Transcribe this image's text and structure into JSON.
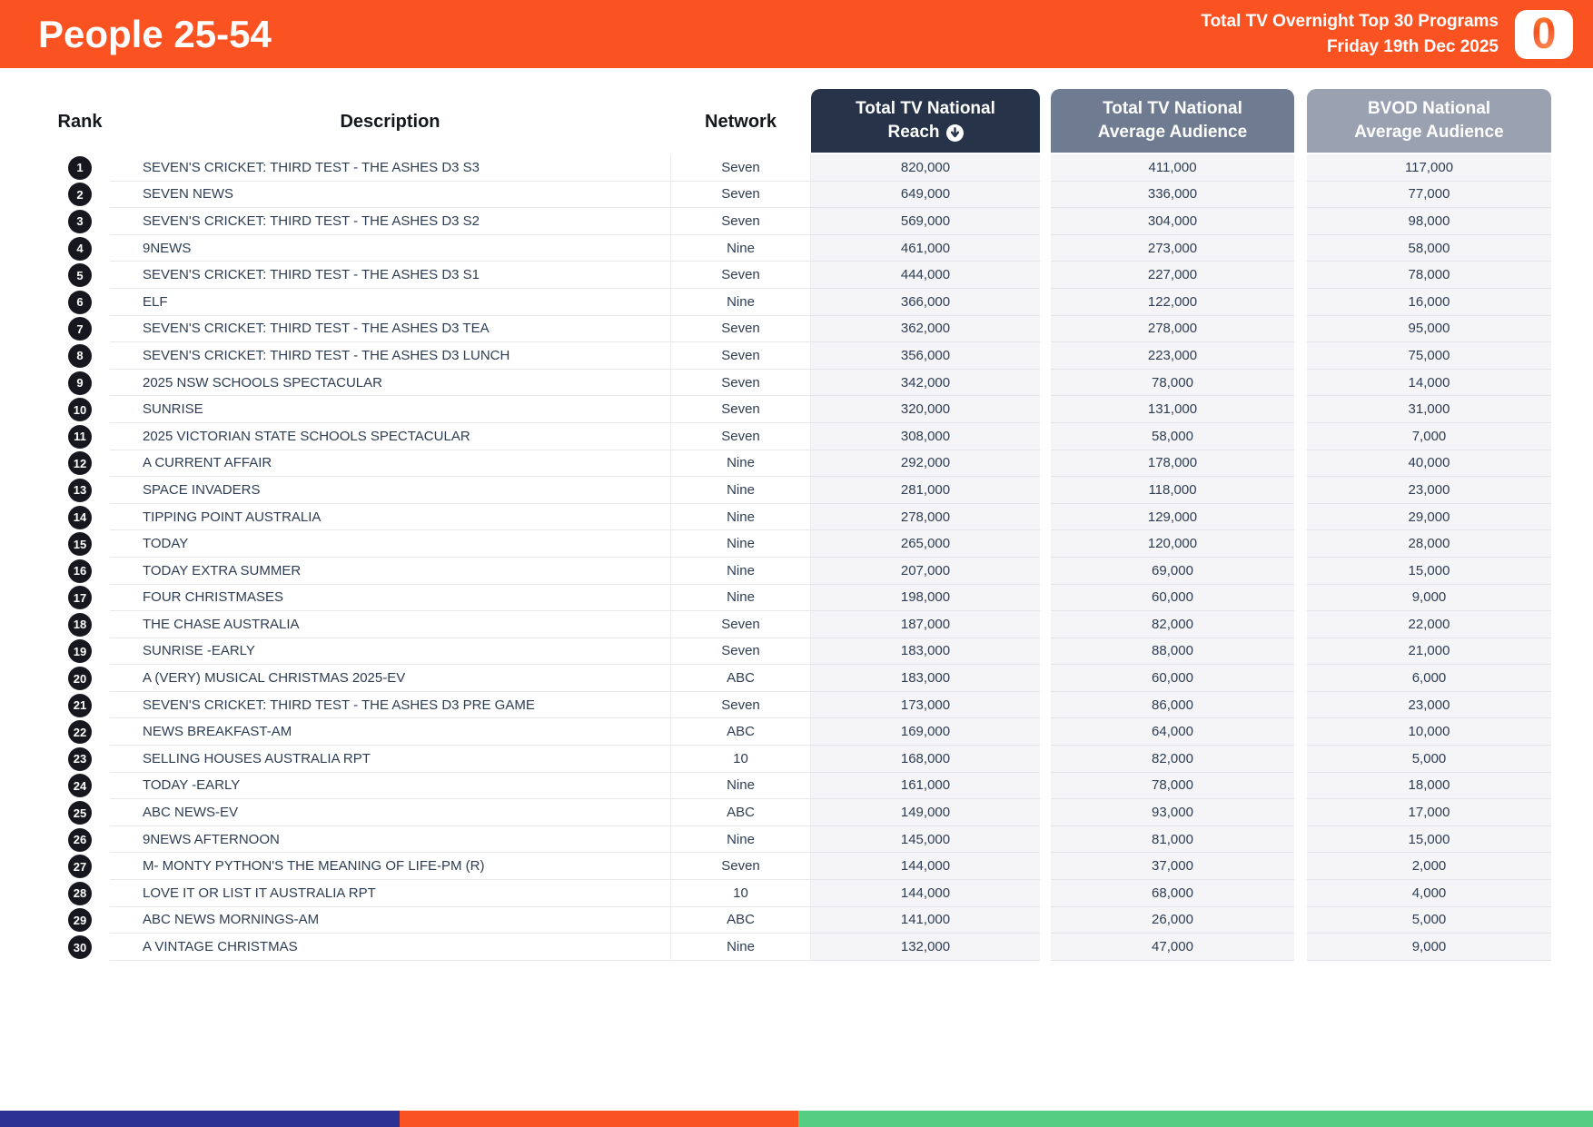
{
  "header": {
    "title": "People 25-54",
    "subtitle_line1": "Total TV Overnight Top 30 Programs",
    "subtitle_line2": "Friday 19th Dec 2025",
    "logo_char": "0"
  },
  "colors": {
    "brand_orange": "#FB5222",
    "reach_header": "#263349",
    "avg_header": "#6F7B90",
    "bvod_header": "#9AA2B1",
    "footer_blue": "#2D3193",
    "footer_green": "#55CE84",
    "table_text": "#2E3D52"
  },
  "table": {
    "columns": {
      "rank": "Rank",
      "description": "Description",
      "network": "Network",
      "reach_line1": "Total TV National",
      "reach_line2": "Reach",
      "reach_sort_icon": "circle-arrow-down",
      "avg_line1": "Total TV National",
      "avg_line2": "Average Audience",
      "bvod_line1": "BVOD National",
      "bvod_line2": "Average Audience"
    },
    "rows": [
      {
        "rank": "1",
        "description": "SEVEN'S CRICKET: THIRD TEST - THE ASHES D3 S3",
        "network": "Seven",
        "reach": "820,000",
        "avg_audience": "411,000",
        "bvod_audience": "117,000"
      },
      {
        "rank": "2",
        "description": "SEVEN NEWS",
        "network": "Seven",
        "reach": "649,000",
        "avg_audience": "336,000",
        "bvod_audience": "77,000"
      },
      {
        "rank": "3",
        "description": "SEVEN'S CRICKET: THIRD TEST - THE ASHES D3 S2",
        "network": "Seven",
        "reach": "569,000",
        "avg_audience": "304,000",
        "bvod_audience": "98,000"
      },
      {
        "rank": "4",
        "description": "9NEWS",
        "network": "Nine",
        "reach": "461,000",
        "avg_audience": "273,000",
        "bvod_audience": "58,000"
      },
      {
        "rank": "5",
        "description": "SEVEN'S CRICKET: THIRD TEST - THE ASHES D3 S1",
        "network": "Seven",
        "reach": "444,000",
        "avg_audience": "227,000",
        "bvod_audience": "78,000"
      },
      {
        "rank": "6",
        "description": "ELF",
        "network": "Nine",
        "reach": "366,000",
        "avg_audience": "122,000",
        "bvod_audience": "16,000"
      },
      {
        "rank": "7",
        "description": "SEVEN'S CRICKET: THIRD TEST - THE ASHES D3 TEA",
        "network": "Seven",
        "reach": "362,000",
        "avg_audience": "278,000",
        "bvod_audience": "95,000"
      },
      {
        "rank": "8",
        "description": "SEVEN'S CRICKET: THIRD TEST - THE ASHES D3 LUNCH",
        "network": "Seven",
        "reach": "356,000",
        "avg_audience": "223,000",
        "bvod_audience": "75,000"
      },
      {
        "rank": "9",
        "description": "2025 NSW SCHOOLS SPECTACULAR",
        "network": "Seven",
        "reach": "342,000",
        "avg_audience": "78,000",
        "bvod_audience": "14,000"
      },
      {
        "rank": "10",
        "description": "SUNRISE",
        "network": "Seven",
        "reach": "320,000",
        "avg_audience": "131,000",
        "bvod_audience": "31,000"
      },
      {
        "rank": "11",
        "description": "2025 VICTORIAN STATE SCHOOLS SPECTACULAR",
        "network": "Seven",
        "reach": "308,000",
        "avg_audience": "58,000",
        "bvod_audience": "7,000"
      },
      {
        "rank": "12",
        "description": "A CURRENT AFFAIR",
        "network": "Nine",
        "reach": "292,000",
        "avg_audience": "178,000",
        "bvod_audience": "40,000"
      },
      {
        "rank": "13",
        "description": "SPACE INVADERS",
        "network": "Nine",
        "reach": "281,000",
        "avg_audience": "118,000",
        "bvod_audience": "23,000"
      },
      {
        "rank": "14",
        "description": "TIPPING POINT AUSTRALIA",
        "network": "Nine",
        "reach": "278,000",
        "avg_audience": "129,000",
        "bvod_audience": "29,000"
      },
      {
        "rank": "15",
        "description": "TODAY",
        "network": "Nine",
        "reach": "265,000",
        "avg_audience": "120,000",
        "bvod_audience": "28,000"
      },
      {
        "rank": "16",
        "description": "TODAY EXTRA SUMMER",
        "network": "Nine",
        "reach": "207,000",
        "avg_audience": "69,000",
        "bvod_audience": "15,000"
      },
      {
        "rank": "17",
        "description": "FOUR CHRISTMASES",
        "network": "Nine",
        "reach": "198,000",
        "avg_audience": "60,000",
        "bvod_audience": "9,000"
      },
      {
        "rank": "18",
        "description": "THE CHASE AUSTRALIA",
        "network": "Seven",
        "reach": "187,000",
        "avg_audience": "82,000",
        "bvod_audience": "22,000"
      },
      {
        "rank": "19",
        "description": "SUNRISE -EARLY",
        "network": "Seven",
        "reach": "183,000",
        "avg_audience": "88,000",
        "bvod_audience": "21,000"
      },
      {
        "rank": "20",
        "description": "A (VERY) MUSICAL CHRISTMAS 2025-EV",
        "network": "ABC",
        "reach": "183,000",
        "avg_audience": "60,000",
        "bvod_audience": "6,000"
      },
      {
        "rank": "21",
        "description": "SEVEN'S CRICKET: THIRD TEST - THE ASHES D3 PRE GAME",
        "network": "Seven",
        "reach": "173,000",
        "avg_audience": "86,000",
        "bvod_audience": "23,000"
      },
      {
        "rank": "22",
        "description": "NEWS BREAKFAST-AM",
        "network": "ABC",
        "reach": "169,000",
        "avg_audience": "64,000",
        "bvod_audience": "10,000"
      },
      {
        "rank": "23",
        "description": "SELLING HOUSES AUSTRALIA RPT",
        "network": "10",
        "reach": "168,000",
        "avg_audience": "82,000",
        "bvod_audience": "5,000"
      },
      {
        "rank": "24",
        "description": "TODAY -EARLY",
        "network": "Nine",
        "reach": "161,000",
        "avg_audience": "78,000",
        "bvod_audience": "18,000"
      },
      {
        "rank": "25",
        "description": "ABC NEWS-EV",
        "network": "ABC",
        "reach": "149,000",
        "avg_audience": "93,000",
        "bvod_audience": "17,000"
      },
      {
        "rank": "26",
        "description": "9NEWS AFTERNOON",
        "network": "Nine",
        "reach": "145,000",
        "avg_audience": "81,000",
        "bvod_audience": "15,000"
      },
      {
        "rank": "27",
        "description": "M- MONTY PYTHON'S THE MEANING OF LIFE-PM (R)",
        "network": "Seven",
        "reach": "144,000",
        "avg_audience": "37,000",
        "bvod_audience": "2,000"
      },
      {
        "rank": "28",
        "description": "LOVE IT OR LIST IT AUSTRALIA RPT",
        "network": "10",
        "reach": "144,000",
        "avg_audience": "68,000",
        "bvod_audience": "4,000"
      },
      {
        "rank": "29",
        "description": "ABC NEWS MORNINGS-AM",
        "network": "ABC",
        "reach": "141,000",
        "avg_audience": "26,000",
        "bvod_audience": "5,000"
      },
      {
        "rank": "30",
        "description": "A VINTAGE CHRISTMAS",
        "network": "Nine",
        "reach": "132,000",
        "avg_audience": "47,000",
        "bvod_audience": "9,000"
      }
    ]
  }
}
